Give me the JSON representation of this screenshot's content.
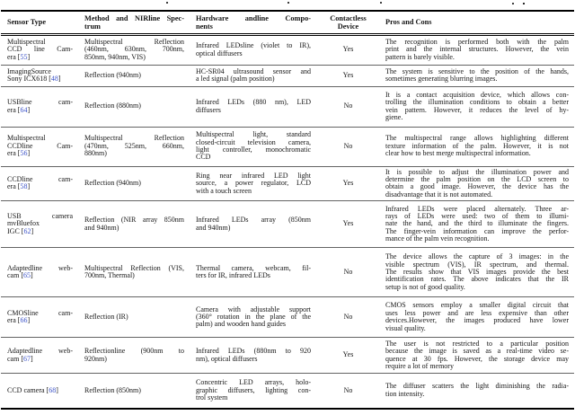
{
  "accent_colors": {
    "citation_link": "#3a51c7",
    "rule_heavy": "#000000",
    "rule_light": "#646464"
  },
  "table": {
    "headers": {
      "sensor": [
        "Sensor Type"
      ],
      "method": [
        "Method and NIRline Spec-",
        "trum"
      ],
      "hardware": [
        "Hardware andline Compo-",
        "nents"
      ],
      "contactless": [
        "Contactless",
        "Device"
      ],
      "pros": [
        "Pros and Cons"
      ]
    },
    "rows": [
      {
        "sensor": [
          "Multispectral",
          "CCD line Cam-",
          "era [55]"
        ],
        "method": [
          "Multispectral Reflection",
          "(460nm, 630nm, 700nm,",
          "850nm, 940nm, VIS)"
        ],
        "hardware": [
          "Infrared LEDsline (violet to IR),",
          "optical diffusers"
        ],
        "contactless": "Yes",
        "pros": [
          "The recognition is performed both with the palm",
          "print and the internal structures. However, the vein",
          "pattern is barely visible."
        ]
      },
      {
        "sensor": [
          "ImagingSource",
          "Sony ICX618 [48]"
        ],
        "method": [
          "Reflection (940nm)"
        ],
        "hardware": [
          "HC-SR04 ultrasound sensor and",
          "a led signal (palm position)"
        ],
        "contactless": "Yes",
        "pros": [
          "The system is sensitive to the position of the hands,",
          "sometimes generating blurring images."
        ]
      },
      {
        "sensor": [
          "USBline cam-",
          "era [64]"
        ],
        "method": [
          "Reflection (880nm)"
        ],
        "hardware": [
          "Infrared LEDs (880 nm), LED",
          "diffusers"
        ],
        "contactless": "No",
        "pros": [
          "It is a contact acquisition device, which allows con-",
          "trolling the illumination conditions to obtain a better",
          "vein pattern. However, it reduces the level of hy-",
          "giene."
        ]
      },
      {
        "sensor": [
          "Multispectral",
          "CCDline Cam-",
          "era [56]"
        ],
        "method": [
          "Multispectral Reflection",
          "(470nm, 525nm, 660nm,",
          "880nm)"
        ],
        "hardware": [
          "Multispectral light, standard",
          "closed-circuit television camera,",
          "light controller, monochromatic",
          "CCD"
        ],
        "contactless": "No",
        "pros": [
          "The multispectral range allows highlighting different",
          "texture information of the palm. However, it is not",
          "clear how to best merge multispectral information."
        ]
      },
      {
        "sensor": [
          "CCDline cam-",
          "era [58]"
        ],
        "method": [
          "Reflection (940nm)"
        ],
        "hardware": [
          "Ring near infrared LED light",
          "source, a power regulator, LCD",
          "with a touch screen"
        ],
        "contactless": "Yes",
        "pros": [
          "It is possible to adjust the illumination power and",
          "determine the palm position on the LCD screen to",
          "obtain a good image. However, the device has the",
          "disadvantage that it is not automated."
        ]
      },
      {
        "sensor": [
          "USB camera",
          "mvBluefox",
          "IGC [62]"
        ],
        "method": [
          "Reflection (NIR array 850nm",
          "and 940nm)"
        ],
        "hardware": [
          "Infrared LEDs array (850nm",
          "and 940nm)"
        ],
        "contactless": "Yes",
        "pros": [
          "Infrared LEDs were placed alternately. Three ar-",
          "rays of LEDs were used: two of them to illumi-",
          "nate the hand, and the third to illuminate the fingers.",
          "The finger-vein information can improve the perfor-",
          "mance of the palm vein recognition."
        ]
      },
      {
        "sensor": [
          "Adaptedline web-",
          "cam [65]"
        ],
        "method": [
          "Multispectral Reflection (VIS,",
          "700nm, Thermal)"
        ],
        "hardware": [
          "Thermal camera, webcam, fil-",
          "ters for IR, infrared LEDs"
        ],
        "contactless": "No",
        "pros": [
          "The device allows the capture of 3 images: in the",
          "visible spectrum (VIS), IR spectrum, and thermal.",
          "The results show that VIS images provide the best",
          "identification rates. The above indicates that the IR",
          "setup is not of good quality."
        ]
      },
      {
        "sensor": [
          "CMOSline cam-",
          "era [66]"
        ],
        "method": [
          "Reflection (IR)"
        ],
        "hardware": [
          "Camera with adjustable support",
          "(360° rotation in the plane of the",
          "palm) and wooden hand guides"
        ],
        "contactless": "No",
        "pros": [
          "CMOS sensors employ a smaller digital circuit that",
          "uses less power and are less expensive than other",
          "devices.However, the images produced have lower",
          "visual quality."
        ]
      },
      {
        "sensor": [
          "Adaptedline web-",
          "cam [67]"
        ],
        "method": [
          "Reflectionline (900nm to",
          "920nm)"
        ],
        "hardware": [
          "Infrared LEDs (880nm to 920",
          "nm), optical diffusers"
        ],
        "contactless": "Yes",
        "pros": [
          "The user is not restricted to a particular position",
          "because the image is saved as a real-time video se-",
          "quence at 30 fps. However, the storage device may",
          "require a lot of memory"
        ]
      },
      {
        "sensor": [
          "CCD camera [68]"
        ],
        "method": [
          "Reflection (850nm)"
        ],
        "hardware": [
          "Concentric LED arrays, holo-",
          "graphic diffusers, lighting con-",
          "trol system"
        ],
        "contactless": "No",
        "pros": [
          "The diffuser scatters the light diminishing the radia-",
          "tion intensity."
        ]
      }
    ]
  }
}
